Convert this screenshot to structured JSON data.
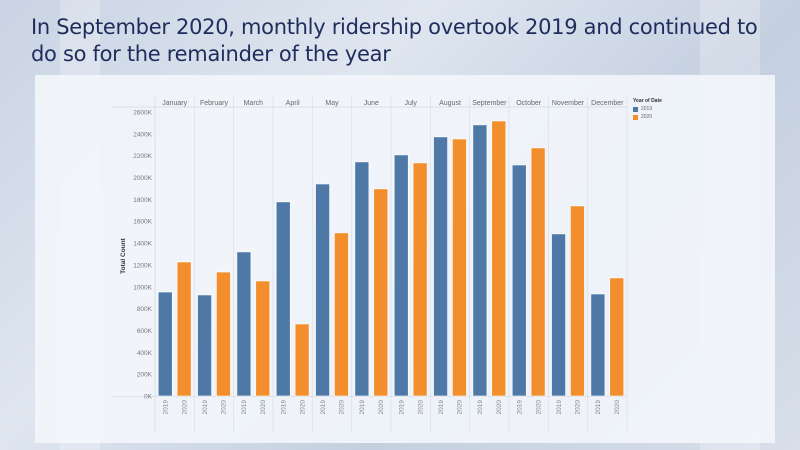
{
  "slide": {
    "title": "In September 2020, monthly ridership overtook 2019 and continued to do so for the remainder of the year"
  },
  "colors": {
    "y2019": "#4e79a7",
    "y2020": "#f28e2b"
  },
  "chart_data": {
    "type": "bar",
    "title": "",
    "xlabel": "",
    "ylabel": "Total Count",
    "ylim": [
      0,
      2600
    ],
    "yticks": [
      0,
      200,
      400,
      600,
      800,
      1000,
      1200,
      1400,
      1600,
      1800,
      2000,
      2200,
      2400,
      2600
    ],
    "ytick_suffix": "K",
    "categories": [
      "January",
      "February",
      "March",
      "April",
      "May",
      "June",
      "July",
      "August",
      "September",
      "October",
      "November",
      "December"
    ],
    "sub_categories": [
      "2019",
      "2020"
    ],
    "series": [
      {
        "name": "2019",
        "values": [
          952,
          925,
          1319,
          1777,
          1941,
          2143,
          2207,
          2372,
          2482,
          2115,
          1484,
          934
        ]
      },
      {
        "name": "2020",
        "values": [
          1227,
          1135,
          1053,
          659,
          1493,
          1896,
          2134,
          2353,
          2518,
          2271,
          1740,
          1081
        ]
      }
    ],
    "legend": {
      "title": "Year of Date",
      "entries": [
        "2019",
        "2020"
      ],
      "position": "top-right"
    },
    "grid": "vertical-month-dividers"
  }
}
